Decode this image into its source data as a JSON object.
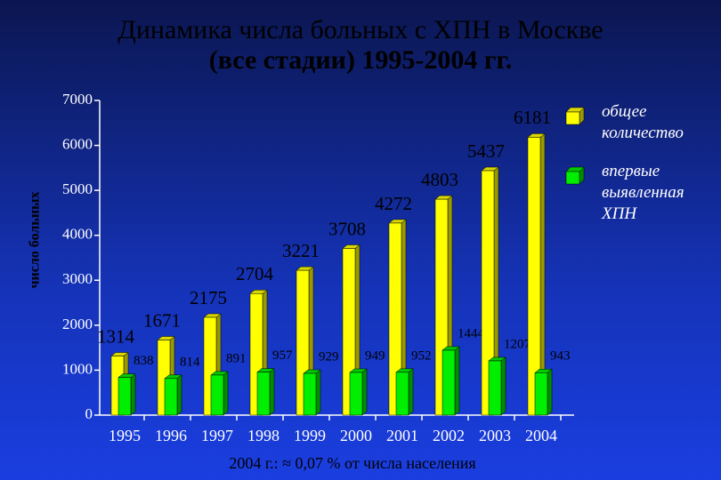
{
  "chart_data": {
    "type": "bar3d",
    "title": "Динамика числа больных с ХПН в Москве",
    "subtitle": "(все стадии) 1995-2004 гг.",
    "y_label": "число больных",
    "annotation": "2004 г.: ≈ 0,07 % от числа населения",
    "categories": [
      "1995",
      "1996",
      "1997",
      "1998",
      "1999",
      "2000",
      "2001",
      "2002",
      "2003",
      "2004"
    ],
    "series": [
      {
        "name": "общее количество",
        "color": "#ffff00",
        "values": [
          1314,
          1671,
          2175,
          2704,
          3221,
          3708,
          4272,
          4803,
          5437,
          6181
        ]
      },
      {
        "name": "впервые выявленная ХПН",
        "color": "#00ee00",
        "values": [
          838,
          814,
          891,
          957,
          929,
          949,
          952,
          1444,
          1207,
          943
        ]
      }
    ],
    "ylim": [
      0,
      7000
    ],
    "yticks": [
      0,
      1000,
      2000,
      3000,
      4000,
      5000,
      6000,
      7000
    ]
  }
}
